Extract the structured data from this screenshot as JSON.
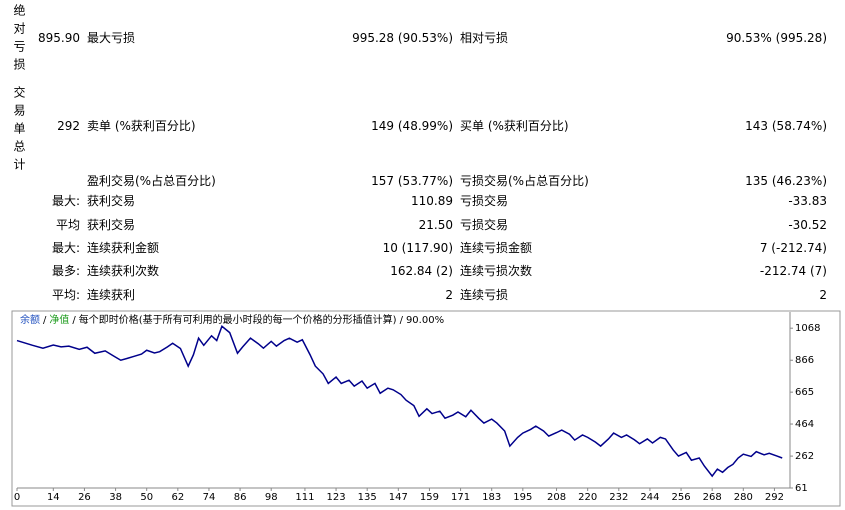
{
  "report": {
    "rows": [
      {
        "group": "绝对亏损",
        "lead": "895.90",
        "label1": "最大亏损",
        "value1": "995.28 (90.53%)",
        "label2": "相对亏损",
        "value2": "90.53% (995.28)"
      },
      {
        "group": "交易单总计",
        "lead": "292",
        "label1": "卖单 (%获利百分比)",
        "value1": "149 (48.99%)",
        "label2": "买单 (%获利百分比)",
        "value2": "143 (58.74%)"
      },
      {
        "label1": "盈利交易(%占总百分比)",
        "value1": "157 (53.77%)",
        "label2": "亏损交易(%占总百分比)",
        "value2": "135 (46.23%)"
      },
      {
        "lead": "最大:",
        "label1": "获利交易",
        "value1": "110.89",
        "label2": "亏损交易",
        "value2": "-33.83"
      },
      {
        "lead": "平均",
        "label1": "获利交易",
        "value1": "21.50",
        "label2": "亏损交易",
        "value2": "-30.52"
      },
      {
        "lead": "最大:",
        "label1": "连续获利金额",
        "value1": "10 (117.90)",
        "label2": "连续亏损金额",
        "value2": "7 (-212.74)"
      },
      {
        "lead": "最多:",
        "label1": "连续获利次数",
        "value1": "162.84 (2)",
        "label2": "连续亏损次数",
        "value2": "-212.74 (7)"
      },
      {
        "lead": "平均:",
        "label1": "连续获利",
        "value1": "2",
        "label2": "连续亏损",
        "value2": "2"
      }
    ]
  },
  "chart_data": {
    "type": "line",
    "legend": {
      "balance": "余额",
      "balance_color": "#1f4fbf",
      "equity": "净值",
      "equity_color": "#1a9a1a",
      "separator": "/",
      "description": "每个即时价格(基于所有可利用的最小时段的每一个价格的分形插值计算)",
      "percent": "90.00%"
    },
    "x": [
      0,
      3,
      6,
      10,
      14,
      17,
      20,
      24,
      27,
      30,
      34,
      37,
      40,
      43,
      45,
      48,
      50,
      53,
      55,
      58,
      60,
      63,
      66,
      68,
      70,
      72,
      75,
      77,
      79,
      82,
      85,
      87,
      90,
      93,
      95,
      98,
      100,
      103,
      105,
      108,
      110,
      113,
      115,
      118,
      120,
      123,
      125,
      128,
      130,
      133,
      135,
      138,
      140,
      143,
      145,
      148,
      150,
      153,
      155,
      158,
      160,
      163,
      165,
      168,
      170,
      173,
      175,
      178,
      180,
      183,
      185,
      188,
      190,
      193,
      195,
      198,
      200,
      203,
      205,
      208,
      210,
      213,
      215,
      218,
      220,
      223,
      225,
      228,
      230,
      233,
      235,
      238,
      240,
      243,
      245,
      248,
      250,
      253,
      255,
      258,
      260,
      263,
      265,
      268,
      270,
      272,
      274,
      276,
      278,
      280,
      283,
      285,
      288,
      290,
      293,
      295
    ],
    "series": [
      {
        "name": "余额",
        "color": "#00008b",
        "values": [
          990,
          975,
          960,
          942,
          962,
          950,
          955,
          935,
          948,
          910,
          925,
          895,
          866,
          880,
          890,
          905,
          929,
          912,
          920,
          950,
          973,
          940,
          829,
          900,
          1005,
          960,
          1020,
          990,
          1080,
          1040,
          910,
          950,
          1005,
          970,
          942,
          985,
          955,
          990,
          1005,
          980,
          995,
          900,
          829,
          780,
          720,
          760,
          720,
          740,
          703,
          735,
          690,
          720,
          658,
          690,
          680,
          650,
          614,
          580,
          513,
          560,
          530,
          545,
          501,
          520,
          540,
          510,
          551,
          500,
          470,
          495,
          470,
          420,
          325,
          380,
          407,
          430,
          451,
          420,
          388,
          410,
          426,
          400,
          363,
          395,
          380,
          350,
          325,
          370,
          407,
          380,
          395,
          365,
          340,
          370,
          345,
          380,
          370,
          300,
          262,
          285,
          236,
          250,
          199,
          136,
          180,
          160,
          190,
          210,
          250,
          274,
          260,
          290,
          270,
          280,
          262,
          250
        ]
      }
    ],
    "xlim": [
      0,
      298
    ],
    "ylim": [
      61,
      1170
    ],
    "xticks": [
      0,
      14,
      26,
      38,
      50,
      62,
      74,
      86,
      98,
      111,
      123,
      135,
      147,
      159,
      171,
      183,
      195,
      208,
      220,
      232,
      244,
      256,
      268,
      280,
      292
    ],
    "yticks": [
      61,
      262,
      464,
      665,
      866,
      1068
    ]
  }
}
